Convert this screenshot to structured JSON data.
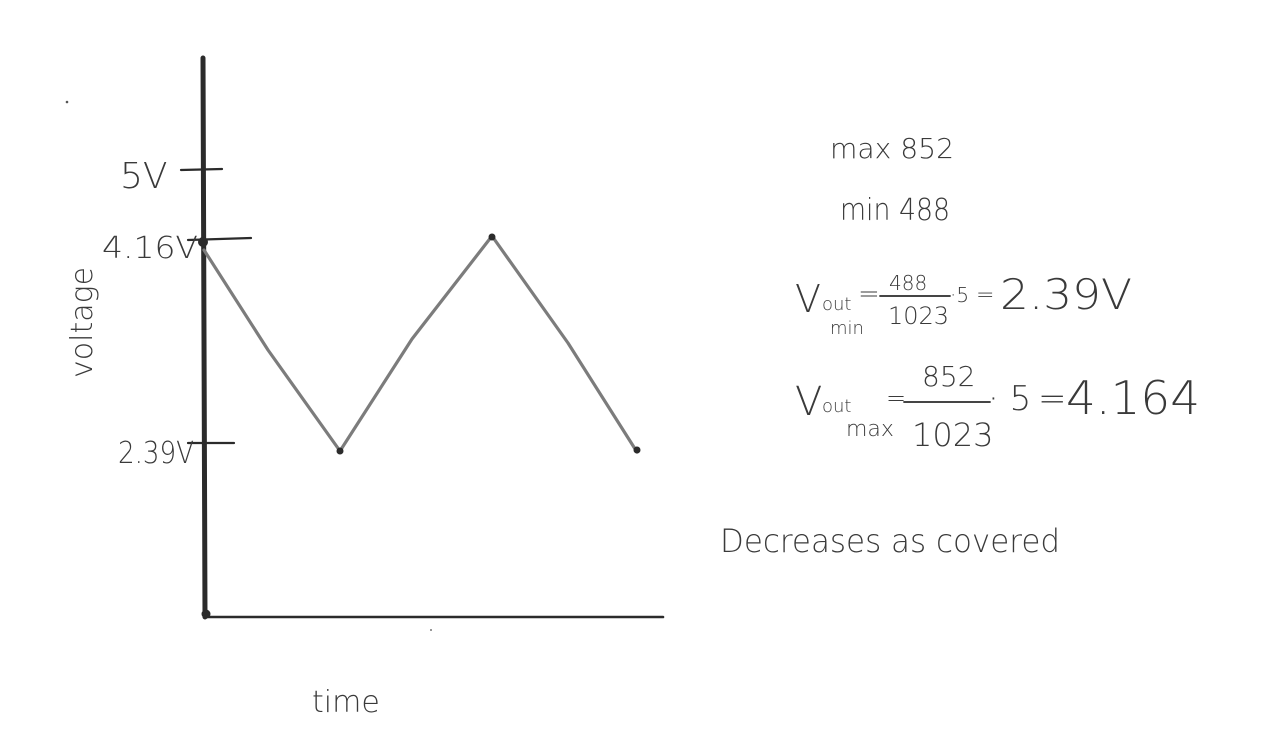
{
  "graph": {
    "y_axis_label": "voltage",
    "x_axis_label": "time",
    "tick_labels": {
      "top": "5V",
      "max": "4.16V",
      "min": "2.39V"
    },
    "wave_levels": {
      "max_volts": 4.16,
      "min_volts": 2.39,
      "top_volts": 5
    }
  },
  "notes": {
    "max_line": "max 852",
    "min_line": "min 488",
    "vout_min": {
      "lhs_main": "V",
      "lhs_sub_top": "out",
      "lhs_sub_bottom": "min",
      "equals1": "=",
      "numerator": "488",
      "denominator": "1023",
      "times": "·5",
      "equals2": "=",
      "result": "2.39V"
    },
    "vout_max": {
      "lhs_main": "V",
      "lhs_sub_top": "out",
      "lhs_sub_bottom": "max",
      "equals1": "=",
      "numerator": "852",
      "denominator": "1023",
      "times": "· 5",
      "equals2": "=",
      "result": "4.164"
    },
    "conclusion": "Decreases as covered"
  }
}
